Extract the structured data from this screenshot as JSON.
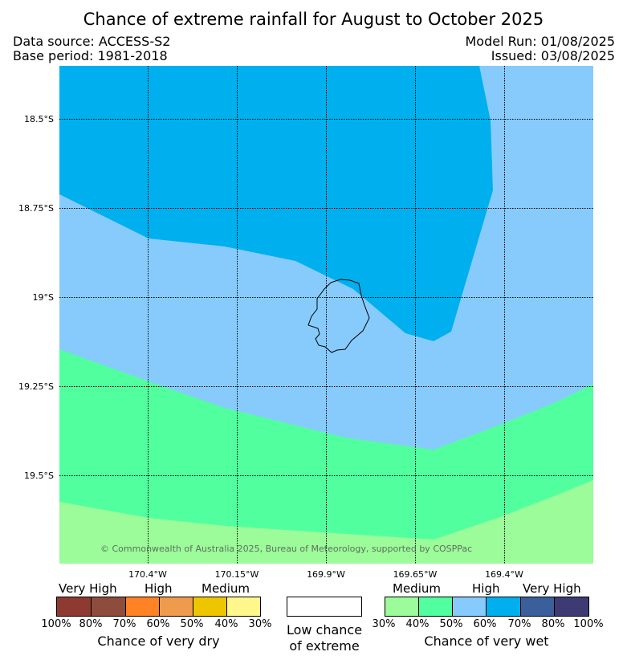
{
  "title": "Chance of extreme rainfall for August to October 2025",
  "meta": {
    "data_source": "Data source: ACCESS-S2",
    "base_period": "Base period: 1981-2018",
    "model_run": "Model Run: 01/08/2025",
    "issued": "Issued: 03/08/2025"
  },
  "map": {
    "latitude_labels": [
      "18.5°S",
      "18.75°S",
      "19°S",
      "19.25°S",
      "19.5°S"
    ],
    "longitude_labels": [
      "170.4°W",
      "170.15°W",
      "169.9°W",
      "169.65°W",
      "169.4°W"
    ],
    "copyright": "© Commonwealth of Australia 2025, Bureau of Meteorology, supported by COSPPac",
    "zone_colors": {
      "wet_high": "#87CBFD",
      "wet_very_high_60_70": "#00B0EE",
      "wet_medium_40_50": "#52FF9F",
      "wet_medium_30_40": "#9BFC99"
    }
  },
  "legend": {
    "dry": {
      "categories": [
        "Very High",
        "High",
        "Medium"
      ],
      "ticks": [
        "100%",
        "80%",
        "70%",
        "60%",
        "50%",
        "40%",
        "30%"
      ],
      "colors": [
        "#8E3A30",
        "#8E4C3C",
        "#FF8224",
        "#EE9B4D",
        "#EEC600",
        "#FFF78B"
      ],
      "caption": "Chance of very dry"
    },
    "neutral": {
      "caption_line1": "Low chance",
      "caption_line2": "of extreme",
      "color": "#ffffff"
    },
    "wet": {
      "categories": [
        "Medium",
        "High",
        "Very High"
      ],
      "ticks": [
        "30%",
        "40%",
        "50%",
        "60%",
        "70%",
        "80%",
        "100%"
      ],
      "colors": [
        "#9BFC99",
        "#52FF9F",
        "#87CBFD",
        "#00B0EE",
        "#3A5F9A",
        "#3E3A73"
      ],
      "caption": "Chance of very wet"
    }
  }
}
